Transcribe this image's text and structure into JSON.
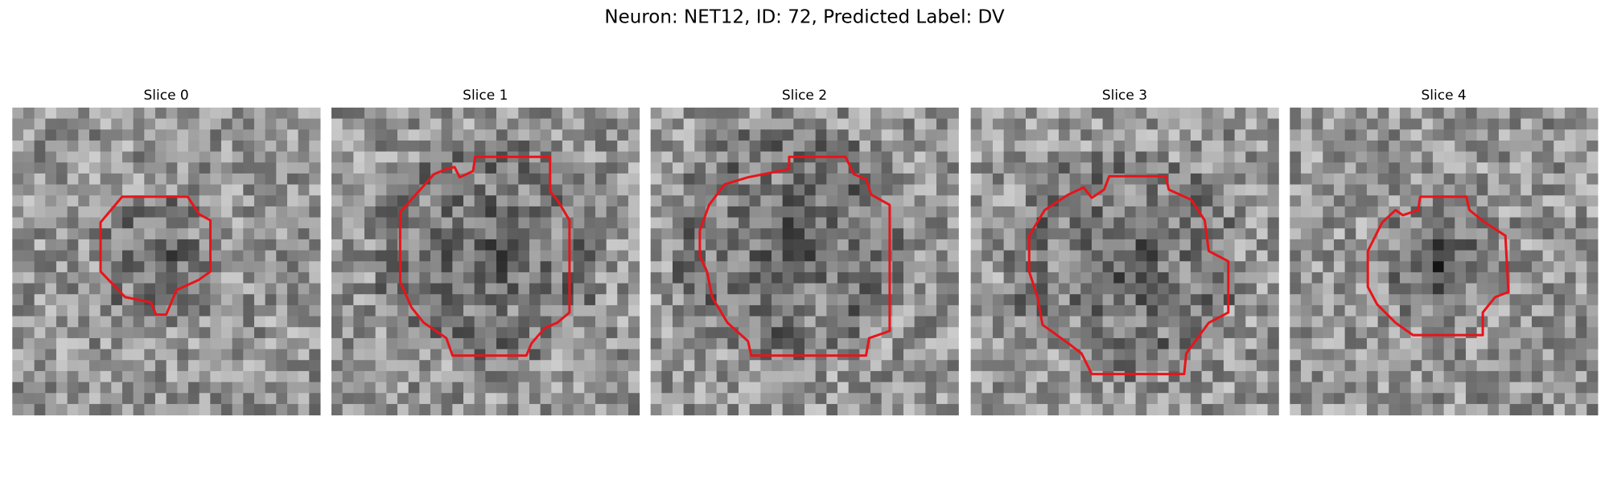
{
  "figure": {
    "title": "Neuron: NET12, ID: 72, Predicted Label: DV",
    "panels": [
      {
        "title": "Slice 0"
      },
      {
        "title": "Slice 1"
      },
      {
        "title": "Slice 2"
      },
      {
        "title": "Slice 3"
      },
      {
        "title": "Slice 4"
      }
    ]
  }
}
